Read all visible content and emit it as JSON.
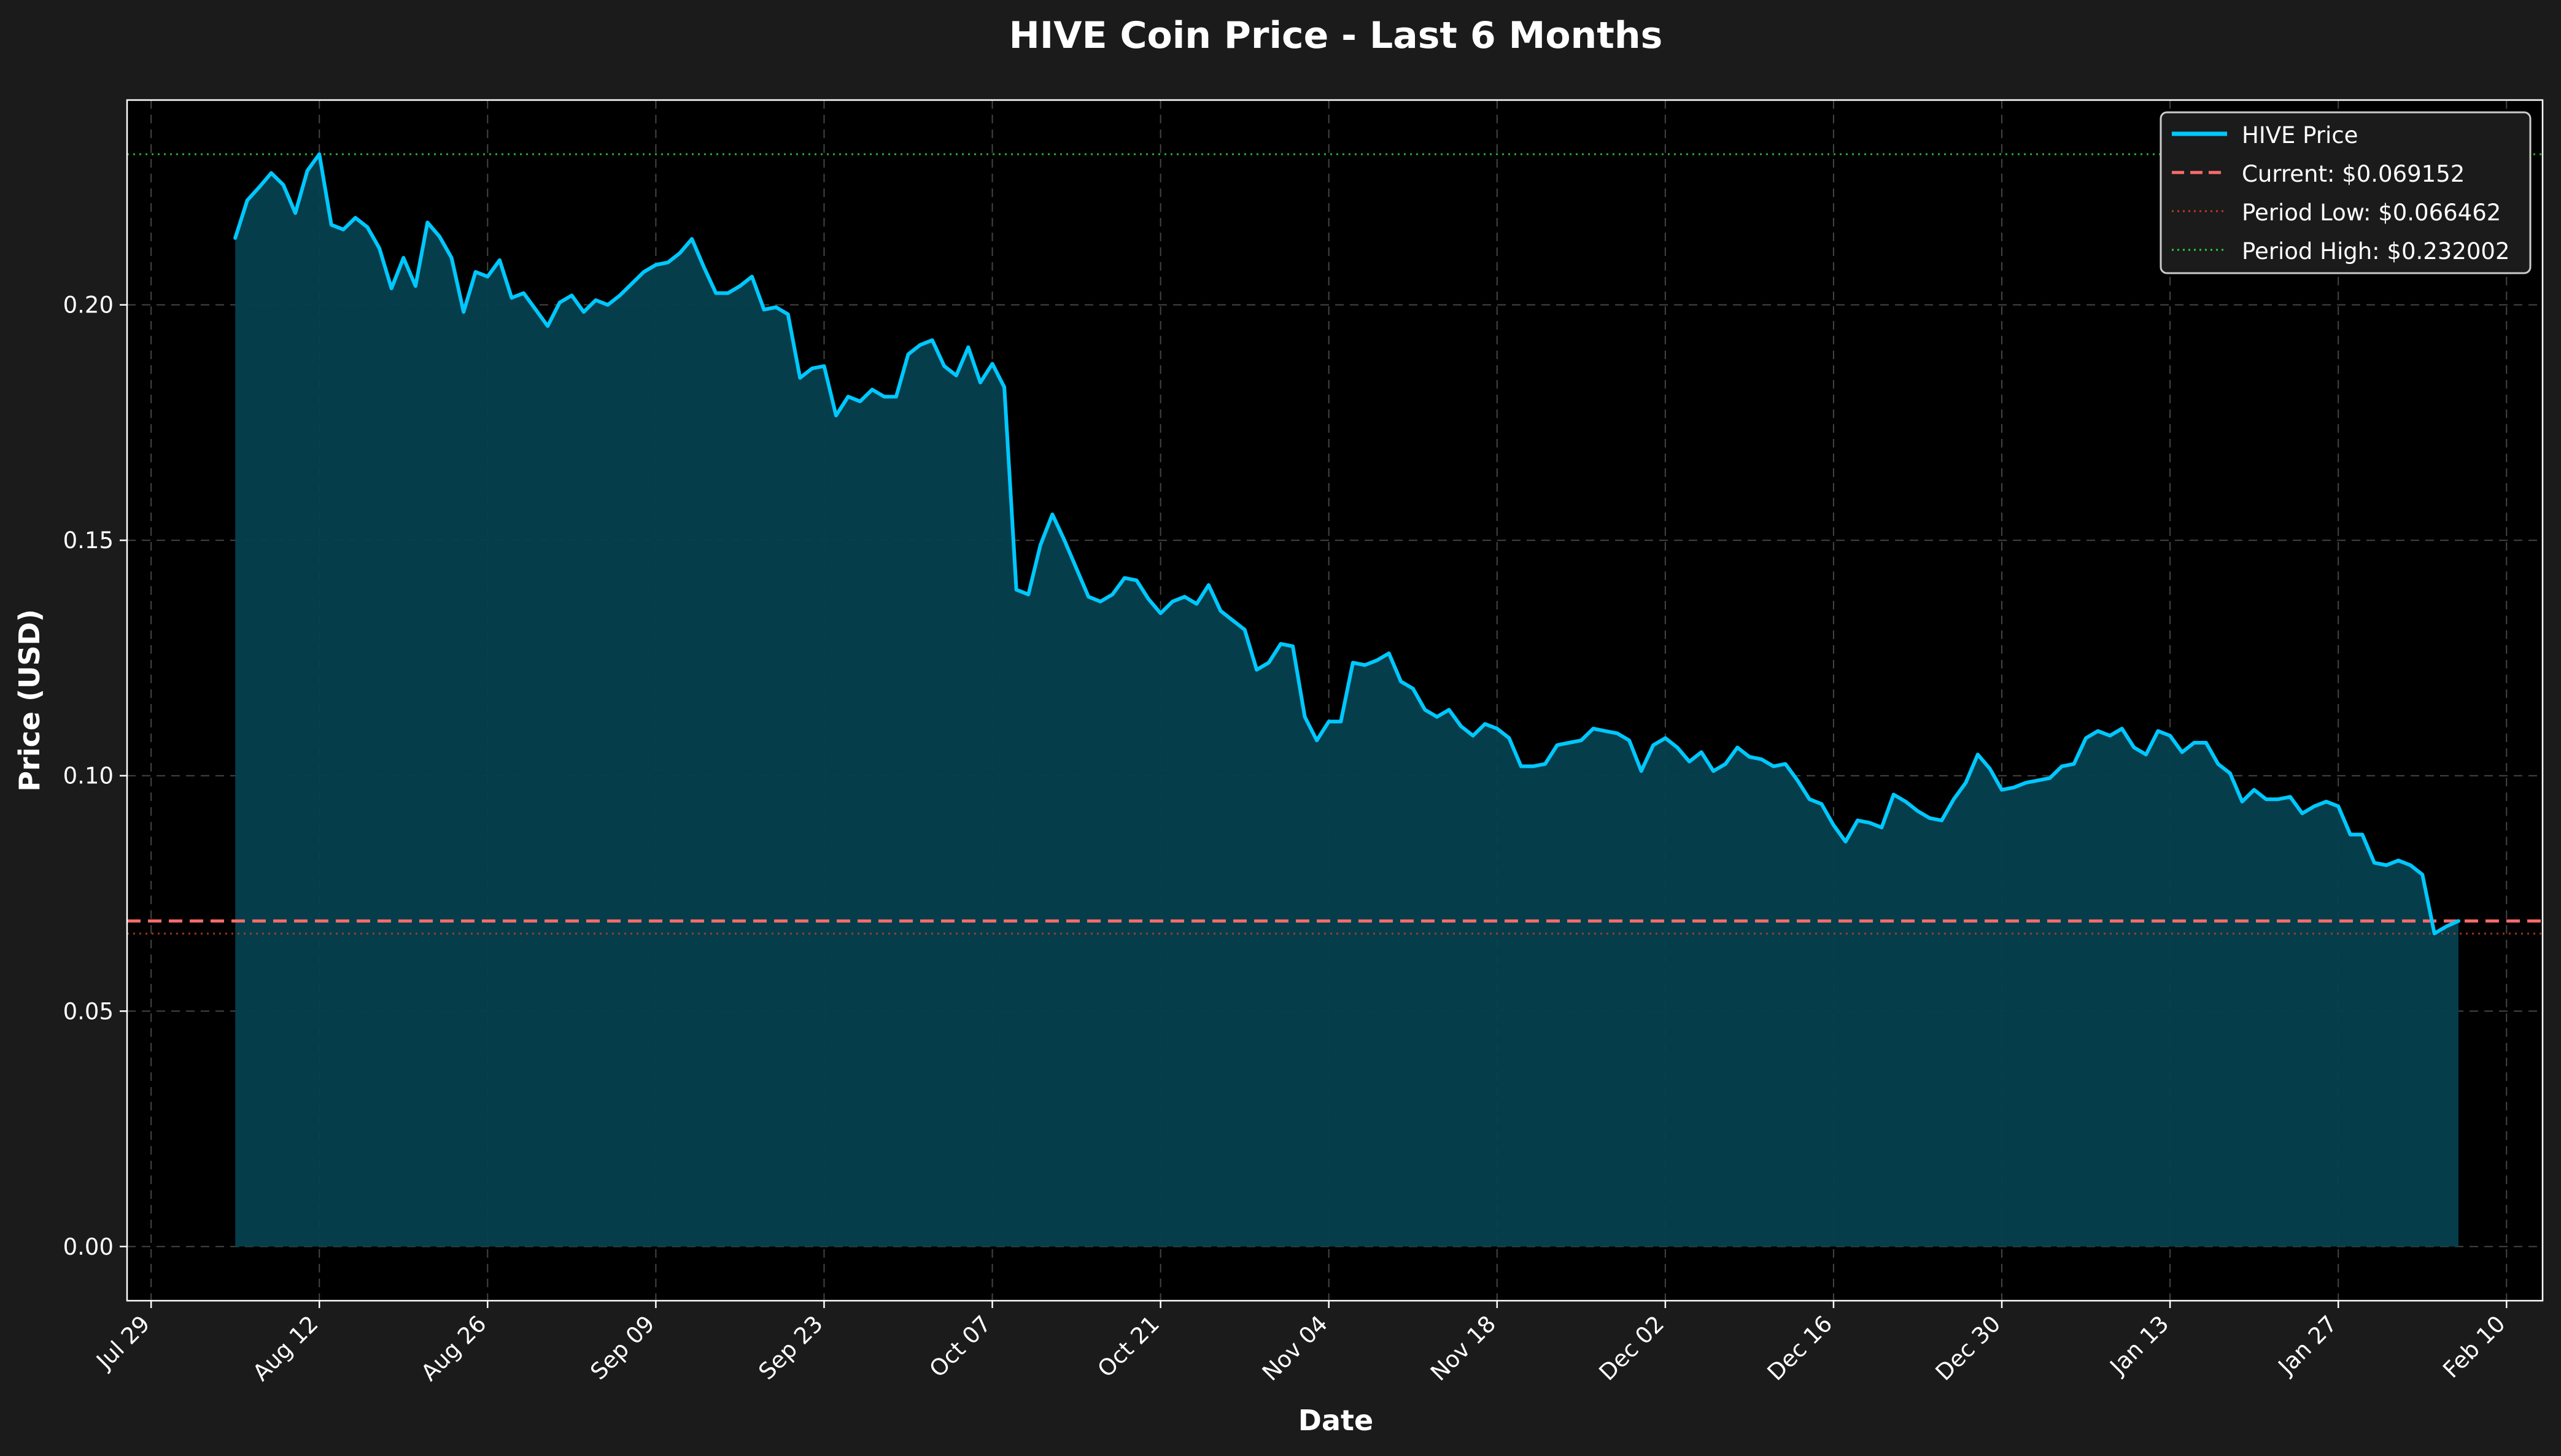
{
  "chart_data": {
    "type": "line",
    "title": "HIVE Coin Price - Last 6 Months",
    "xlabel": "Date",
    "ylabel": "Price (USD)",
    "x_range": [
      "2024-07-27",
      "2025-02-13"
    ],
    "ylim": [
      -0.0115,
      0.2435
    ],
    "x_ticks": [
      {
        "date": "2024-07-29",
        "label": "Jul 29"
      },
      {
        "date": "2024-08-12",
        "label": "Aug 12"
      },
      {
        "date": "2024-08-26",
        "label": "Aug 26"
      },
      {
        "date": "2024-09-09",
        "label": "Sep 09"
      },
      {
        "date": "2024-09-23",
        "label": "Sep 23"
      },
      {
        "date": "2024-10-07",
        "label": "Oct 07"
      },
      {
        "date": "2024-10-21",
        "label": "Oct 21"
      },
      {
        "date": "2024-11-04",
        "label": "Nov 04"
      },
      {
        "date": "2024-11-18",
        "label": "Nov 18"
      },
      {
        "date": "2024-12-02",
        "label": "Dec 02"
      },
      {
        "date": "2024-12-16",
        "label": "Dec 16"
      },
      {
        "date": "2024-12-30",
        "label": "Dec 30"
      },
      {
        "date": "2025-01-13",
        "label": "Jan 13"
      },
      {
        "date": "2025-01-27",
        "label": "Jan 27"
      },
      {
        "date": "2025-02-10",
        "label": "Feb 10"
      }
    ],
    "y_ticks": [
      {
        "value": 0.0,
        "label": "0.00"
      },
      {
        "value": 0.05,
        "label": "0.05"
      },
      {
        "value": 0.1,
        "label": "0.10"
      },
      {
        "value": 0.15,
        "label": "0.15"
      },
      {
        "value": 0.2,
        "label": "0.20"
      }
    ],
    "grid": true,
    "legend_position": "top-right",
    "colors": {
      "figure_bg": "#1b1b1b",
      "plot_bg": "#000000",
      "series": "#00c8ff",
      "fill": "#05404f",
      "current": "#ff6b6b",
      "low": "#c0392b",
      "high": "#2ecc40",
      "text": "#ffffff",
      "grid": "#555555"
    },
    "series": [
      {
        "name": "HIVE Price",
        "start_date": "2024-08-05",
        "values": [
          0.2142,
          0.2222,
          0.225,
          0.228,
          0.2255,
          0.2195,
          0.2285,
          0.232,
          0.217,
          0.216,
          0.2185,
          0.2165,
          0.212,
          0.2035,
          0.21,
          0.204,
          0.2175,
          0.2145,
          0.21,
          0.1985,
          0.207,
          0.206,
          0.2095,
          0.2015,
          0.2025,
          0.199,
          0.1955,
          0.2005,
          0.202,
          0.1985,
          0.201,
          0.2,
          0.202,
          0.2045,
          0.207,
          0.2085,
          0.209,
          0.211,
          0.214,
          0.208,
          0.2025,
          0.2025,
          0.204,
          0.206,
          0.199,
          0.1995,
          0.198,
          0.1845,
          0.1865,
          0.187,
          0.1765,
          0.1805,
          0.1795,
          0.182,
          0.1805,
          0.1805,
          0.1895,
          0.1915,
          0.1925,
          0.187,
          0.185,
          0.191,
          0.1835,
          0.1875,
          0.1825,
          0.1395,
          0.1385,
          0.149,
          0.1555,
          0.15,
          0.144,
          0.138,
          0.137,
          0.1385,
          0.142,
          0.1415,
          0.1375,
          0.1345,
          0.137,
          0.138,
          0.1365,
          0.1405,
          0.135,
          0.133,
          0.131,
          0.1225,
          0.124,
          0.128,
          0.1275,
          0.1125,
          0.1075,
          0.1115,
          0.1115,
          0.124,
          0.1235,
          0.1245,
          0.126,
          0.12,
          0.1185,
          0.114,
          0.1125,
          0.114,
          0.1105,
          0.1085,
          0.111,
          0.11,
          0.108,
          0.102,
          0.102,
          0.1025,
          0.1065,
          0.107,
          0.1075,
          0.11,
          0.1095,
          0.109,
          0.1075,
          0.101,
          0.1065,
          0.108,
          0.106,
          0.103,
          0.105,
          0.101,
          0.1025,
          0.106,
          0.104,
          0.1035,
          0.102,
          0.1025,
          0.099,
          0.095,
          0.094,
          0.0895,
          0.086,
          0.0905,
          0.09,
          0.089,
          0.096,
          0.0945,
          0.0925,
          0.091,
          0.0905,
          0.095,
          0.0985,
          0.1045,
          0.1015,
          0.097,
          0.0975,
          0.0985,
          0.099,
          0.0995,
          0.102,
          0.1025,
          0.108,
          0.1095,
          0.1085,
          0.11,
          0.106,
          0.1045,
          0.1095,
          0.1085,
          0.105,
          0.107,
          0.107,
          0.1025,
          0.1005,
          0.0945,
          0.097,
          0.095,
          0.095,
          0.0955,
          0.092,
          0.0935,
          0.0945,
          0.0935,
          0.0875,
          0.0875,
          0.0815,
          0.081,
          0.082,
          0.081,
          0.079,
          0.0665,
          0.068,
          0.06915
        ]
      }
    ],
    "reference_lines": [
      {
        "name": "Current: $0.069152",
        "value": 0.069152,
        "style": "dashed",
        "color": "#ff6b6b"
      },
      {
        "name": "Period Low: $0.066462",
        "value": 0.066462,
        "style": "dotted",
        "color": "#c0392b"
      },
      {
        "name": "Period High: $0.232002",
        "value": 0.232002,
        "style": "dotted",
        "color": "#2ecc40"
      }
    ]
  }
}
